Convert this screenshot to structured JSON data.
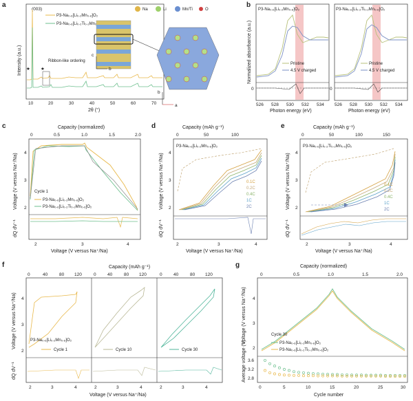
{
  "colors": {
    "p3_mn": "#e8b84a",
    "p3_ti": "#6dbf8e",
    "grey": "#8c8c8c",
    "charged": "#7a8fc4",
    "rate_01": "#d4a040",
    "rate_02": "#c4a97a",
    "rate_04": "#8bb36a",
    "rate_1": "#5aa0c8",
    "rate_2": "#6a7fb0",
    "highlight": "#f5c6c6"
  },
  "panel_a": {
    "label": "a",
    "peak_label": "(003)",
    "legend": [
      "P3-Na₀.₆[Li₀.₂Mn₀.₈]O₂",
      "P3-Na₀.₆[Li₀.₂Ti₀.₂Mn₀.₆]O₂"
    ],
    "annotation": "Ribbon-like ordering",
    "star": "★",
    "ylabel": "Intensity (a.u.)",
    "xlabel": "2θ (°)",
    "xticks": [
      "10",
      "20",
      "30",
      "40",
      "50",
      "60",
      "70"
    ],
    "atom_legend": [
      "Na",
      "Li",
      "Mn/Ti",
      "O"
    ],
    "axis_c": "c",
    "axis_b": "b",
    "axis_a": "a"
  },
  "panel_b": {
    "label": "b",
    "titles": [
      "P3-Na₀.₆[Li₀.₂Mn₀.₈]O₂",
      "P3-Na₀.₆[Li₀.₂Ti₀.₂Mn₀.₆]O₂"
    ],
    "ylabel": "Normalized absorbance (a.u.)",
    "xlabel": "Photon energy (eV)",
    "xticks": [
      "526",
      "528",
      "530",
      "532",
      "534"
    ],
    "legend": [
      "Pristine",
      "4.5 V charged"
    ],
    "zero": "0"
  },
  "panel_c": {
    "label": "c",
    "top_axis": "Capacity (normalized)",
    "top_ticks": [
      "0",
      "0.5",
      "1.0",
      "1.5",
      "2.0"
    ],
    "ylabel": "Voltage (V versus Na⁺/Na)",
    "yticks": [
      "2",
      "3",
      "4"
    ],
    "dq_label": "dQ dV⁻¹",
    "xlabel": "Voltage (V versus Na⁺/Na)",
    "xticks": [
      "2",
      "3",
      "4"
    ],
    "cycle": "Cycle 1",
    "legend": [
      "P3-Na₀.₆[Li₀.₂Mn₀.₈]O₂",
      "P3-Na₀.₆[Li₀.₂Ti₀.₂Mn₀.₆]O₂"
    ]
  },
  "panel_d": {
    "label": "d",
    "top_axis": "Capacity (mAh g⁻¹)",
    "top_ticks": [
      "0",
      "50",
      "100"
    ],
    "title": "P3-Na₀.₆[Li₀.₂Mn₀.₈]O₂",
    "ylabel": "Voltage (V versus Na⁺/Na)",
    "yticks": [
      "2",
      "3",
      "4"
    ],
    "dq_label": "dQ dV⁻¹",
    "xlabel": "Voltage (V versus Na⁺/Na)",
    "xticks": [
      "2",
      "3",
      "4"
    ],
    "rates": [
      "0.1C",
      "0.2C",
      "0.4C",
      "1C",
      "2C"
    ]
  },
  "panel_e": {
    "label": "e",
    "top_axis": "Capacity (mAh g⁻¹)",
    "top_ticks": [
      "0",
      "50",
      "100",
      "150"
    ],
    "title": "P3-Na₀.₆[Li₀.₂Ti₀.₂Mn₀.₆]O₂",
    "ylabel": "Voltage (V versus Na⁺/Na)",
    "yticks": [
      "2",
      "3",
      "4"
    ],
    "dq_label": "dQ dV⁻¹",
    "xlabel": "Voltage (V versus Na⁺/Na)",
    "xticks": [
      "2",
      "3",
      "4"
    ],
    "rates": [
      "0.1C",
      "0.2C",
      "0.4C",
      "1C",
      "2C"
    ]
  },
  "panel_f": {
    "label": "f",
    "top_axis": "Capacity (mAh g⁻¹)",
    "top_ticks": [
      "0",
      "40",
      "80",
      "120"
    ],
    "ylabel": "Voltage (V versus Na⁺/Na)",
    "yticks": [
      "2",
      "3",
      "4"
    ],
    "dq_label": "dQ dV⁻¹",
    "xlabel": "Voltage (V versus Na⁺/Na)",
    "xticks": [
      "2",
      "3",
      "4"
    ],
    "material": "P3-Na₀.₆[Li₀.₂Mn₀.₈]O₂",
    "cycles": [
      "Cycle 1",
      "Cycle 10",
      "Cycle 30"
    ]
  },
  "panel_g": {
    "label": "g",
    "top_axis": "Capacity (normalized)",
    "top_ticks": [
      "0",
      "0.5",
      "1.0",
      "1.5",
      "2.0"
    ],
    "ylabel": "Voltage (V versus Na⁺/Na)",
    "yticks": [
      "2",
      "3",
      "4"
    ],
    "cycle": "Cycle 30",
    "legend": [
      "P3-Na₀.₆[Li₀.₂Mn₀.₈]O₂",
      "P3-Na₀.₆[Li₀.₂Ti₀.₂Mn₀.₆]O₂"
    ],
    "avg_label": "Average voltage (V)",
    "avg_yticks": [
      "3.6",
      "3.2",
      "2.8"
    ],
    "xlabel": "Cycle number",
    "xticks": [
      "0",
      "5",
      "10",
      "15",
      "20",
      "25",
      "30"
    ]
  },
  "chart_data": [
    {
      "type": "scatter",
      "xlabel": "Cycle number",
      "ylabel": "Average voltage (V)",
      "ylim": [
        2.6,
        3.7
      ],
      "series": [
        {
          "name": "P3-Na₀.₆[Li₀.₂Mn₀.₈]O₂",
          "x": [
            1,
            2,
            3,
            4,
            5,
            6,
            7,
            8,
            9,
            10,
            11,
            12,
            13,
            14,
            15,
            16,
            17,
            18,
            19,
            20,
            21,
            22,
            23,
            24,
            25,
            26,
            27,
            28,
            29,
            30
          ],
          "values": [
            3.55,
            3.4,
            3.3,
            3.22,
            3.15,
            3.1,
            3.05,
            3.02,
            3.0,
            2.98,
            2.96,
            2.95,
            2.94,
            2.93,
            2.92,
            2.92,
            2.91,
            2.91,
            2.9,
            2.9,
            2.9,
            2.89,
            2.89,
            2.89,
            2.89,
            2.88,
            2.88,
            2.88,
            2.88,
            2.88
          ]
        },
        {
          "name": "P3-Na₀.₆[Li₀.₂Ti₀.₂Mn₀.₆]O₂",
          "x": [
            1,
            2,
            3,
            4,
            5,
            6,
            7,
            8,
            9,
            10,
            11,
            12,
            13,
            14,
            15,
            16,
            17,
            18,
            19,
            20,
            21,
            22,
            23,
            24,
            25,
            26,
            27,
            28,
            29,
            30
          ],
          "values": [
            3.1,
            3.0,
            2.95,
            2.92,
            2.9,
            2.89,
            2.88,
            2.88,
            2.87,
            2.87,
            2.87,
            2.86,
            2.86,
            2.86,
            2.86,
            2.86,
            2.85,
            2.85,
            2.85,
            2.85,
            2.85,
            2.85,
            2.85,
            2.85,
            2.85,
            2.84,
            2.84,
            2.84,
            2.84,
            2.84
          ]
        }
      ]
    }
  ]
}
